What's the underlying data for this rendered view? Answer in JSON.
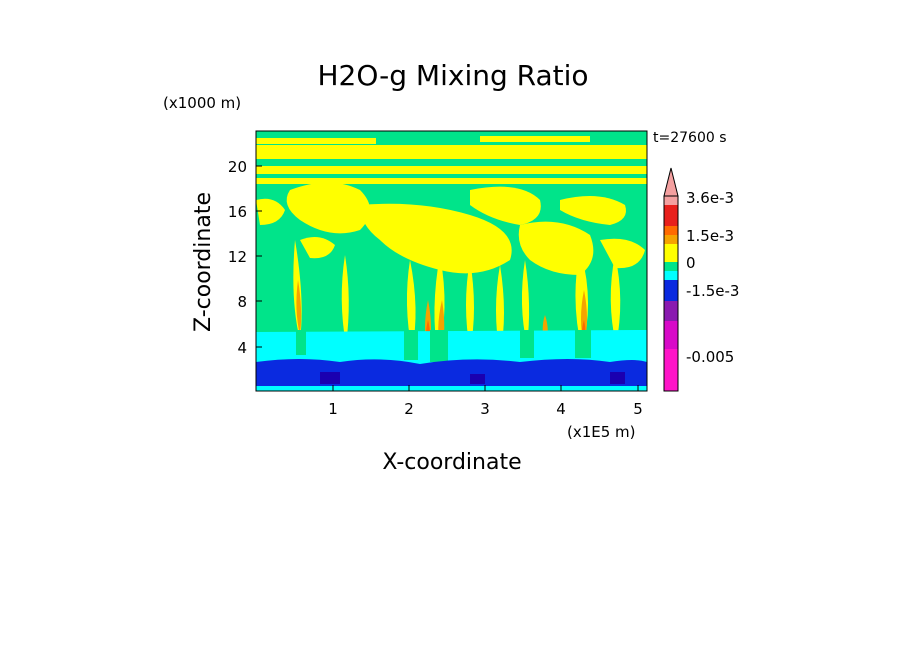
{
  "chart_data": {
    "type": "heatmap",
    "title": "H2O-g Mixing Ratio",
    "xlabel": "X-coordinate",
    "ylabel": "Z-coordinate",
    "x_unit": "(x1E5 m)",
    "y_unit": "(x1000 m)",
    "time_label": "t=27600 s",
    "xlim": [
      0,
      5.15
    ],
    "ylim": [
      0,
      23
    ],
    "x_ticks": [
      1,
      2,
      3,
      4,
      5
    ],
    "y_ticks": [
      4,
      8,
      12,
      16,
      20
    ],
    "colorbar": {
      "labels": [
        "3.6e-3",
        "1.5e-3",
        "0",
        "-1.5e-3",
        "-0.005"
      ],
      "colors": [
        "#f4a0a0",
        "#e8201c",
        "#ff6a00",
        "#f5a300",
        "#ffff00",
        "#00e48a",
        "#00ffff",
        "#0a2ae0",
        "#1a00b0",
        "#8a1ab0",
        "#d80ac8",
        "#ff14c8"
      ]
    },
    "layers": [
      {
        "band": "bottom (z 0-2.5)",
        "dominant_color": "#0a2ae0",
        "meaning": "negative"
      },
      {
        "band": "lower (z 2.5-5)",
        "dominant_color": "#00ffff",
        "meaning": "slightly negative"
      },
      {
        "band": "middle (z 5-20)",
        "dominant_color": "#00e48a",
        "meaning": "near zero"
      },
      {
        "band": "upper (z 14-22)",
        "dominant_color": "#ffff00",
        "meaning": "slightly positive"
      }
    ]
  }
}
